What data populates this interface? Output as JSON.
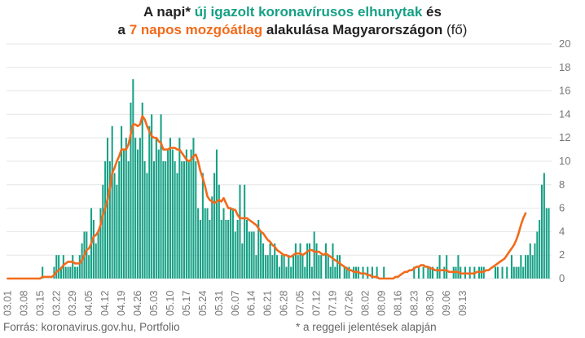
{
  "title": {
    "p1": "A napi* ",
    "p2": "új igazolt koronavírusos elhunytak",
    "p3": " és",
    "p4": "a ",
    "p5": "7 napos mozgóátlag",
    "p6": " alakulása Magyarországon",
    "p7": " (fő)"
  },
  "footer": {
    "source": "Forrás: koronavirus.gov.hu, Portfolio",
    "note": "* a reggeli jelentések alapján"
  },
  "colors": {
    "bars": "#16a085",
    "line": "#f26a1b",
    "grid": "#e6e6e6",
    "axis_text": "#777777"
  },
  "chart_data": {
    "type": "bar",
    "start_date": "03.01",
    "x_tick_labels": [
      "03.01",
      "03.08",
      "03.15",
      "03.22",
      "03.29",
      "04.05",
      "04.12",
      "04.19",
      "04.26",
      "05.03",
      "05.10",
      "05.17",
      "05.24",
      "05.31",
      "06.07",
      "06.14",
      "06.21",
      "06.28",
      "07.05",
      "07.12",
      "07.19",
      "07.26",
      "08.02",
      "08.09",
      "08.16",
      "08.23",
      "08.30",
      "09.06",
      "09.13"
    ],
    "ylim": [
      0,
      20
    ],
    "y_ticks": [
      0,
      2,
      4,
      6,
      8,
      10,
      12,
      14,
      16,
      18,
      20
    ],
    "y_axis_position": "right",
    "grid": true,
    "series": [
      {
        "kind": "bar",
        "values": [
          0,
          0,
          0,
          0,
          0,
          0,
          0,
          0,
          0,
          0,
          0,
          0,
          0,
          0,
          0,
          1,
          0,
          0,
          0,
          0,
          1,
          2,
          2,
          1,
          2,
          1,
          1,
          1,
          2,
          1,
          1,
          2,
          3,
          4,
          4,
          2,
          6,
          5,
          3,
          4,
          6,
          8,
          10,
          12,
          10,
          13,
          9,
          8,
          10,
          13,
          11,
          12,
          10,
          15,
          17,
          12,
          11,
          12,
          15,
          10,
          9,
          13,
          14,
          10,
          12,
          11,
          14,
          10,
          10,
          11,
          12,
          11,
          10,
          9,
          12,
          10,
          10,
          11,
          10,
          11,
          12,
          10,
          6,
          5,
          9,
          6,
          6,
          5,
          7,
          9,
          11,
          8,
          5,
          6,
          5,
          5,
          6,
          6,
          4,
          5,
          8,
          3,
          8,
          5,
          4,
          4,
          4,
          2,
          5,
          4,
          3,
          2,
          2,
          3,
          2,
          3,
          2,
          1,
          2,
          2,
          1,
          2,
          1,
          2,
          3,
          2,
          3,
          2,
          1,
          3,
          3,
          1,
          4,
          3,
          2,
          2,
          0,
          3,
          2,
          1,
          3,
          1,
          2,
          2,
          0,
          1,
          1,
          1,
          0,
          1,
          1,
          1,
          0,
          1,
          0,
          1,
          0,
          1,
          0,
          1,
          0,
          0,
          1,
          0,
          0,
          0,
          0,
          0,
          0,
          0,
          0,
          0,
          0,
          0,
          0,
          1,
          0,
          1,
          0,
          1,
          0,
          1,
          1,
          1,
          0,
          1,
          2,
          0,
          1,
          2,
          0,
          0,
          1,
          1,
          2,
          1,
          0,
          1,
          0,
          1,
          0,
          1,
          0,
          1,
          1,
          1,
          0,
          0,
          0,
          0,
          1,
          1,
          0,
          1,
          0,
          1,
          0,
          2,
          1,
          1,
          1,
          2,
          1,
          2,
          2,
          3,
          2,
          3,
          4,
          5,
          8,
          9,
          6,
          6
        ]
      },
      {
        "kind": "line",
        "values": [
          0,
          0,
          0,
          0,
          0,
          0,
          0,
          0,
          0,
          0,
          0,
          0,
          0,
          0,
          0,
          0.14,
          0.14,
          0.14,
          0.14,
          0.14,
          0.29,
          0.57,
          0.71,
          0.86,
          1.14,
          1.29,
          1.43,
          1.43,
          1.43,
          1.29,
          1.29,
          1.29,
          1.57,
          2.0,
          2.43,
          2.57,
          3.0,
          3.57,
          3.71,
          4.0,
          4.57,
          5.43,
          6.0,
          6.71,
          7.71,
          9.0,
          9.43,
          10.0,
          10.43,
          11.0,
          11.0,
          11.0,
          11.43,
          12.29,
          13.14,
          13.14,
          13.0,
          13.14,
          13.86,
          13.57,
          13.0,
          12.57,
          12.14,
          12.0,
          12.0,
          11.71,
          11.57,
          11.0,
          11.0,
          11.0,
          11.14,
          11.14,
          11.14,
          11.0,
          11.0,
          10.71,
          10.43,
          10.14,
          10.0,
          10.14,
          10.43,
          10.57,
          10.0,
          9.14,
          8.57,
          7.86,
          7.0,
          6.71,
          6.57,
          6.43,
          6.57,
          6.71,
          6.57,
          6.86,
          6.43,
          6.0,
          6.0,
          5.86,
          5.86,
          5.43,
          5.14,
          5.14,
          5.14,
          5.14,
          5.0,
          4.86,
          4.71,
          4.57,
          4.29,
          4.0,
          3.86,
          3.57,
          3.29,
          3.14,
          2.86,
          2.71,
          2.43,
          2.29,
          2.14,
          2.0,
          2.0,
          1.86,
          1.86,
          2.0,
          2.14,
          2.14,
          2.14,
          2.0,
          2.14,
          2.29,
          2.43,
          2.43,
          2.29,
          2.29,
          2.29,
          2.14,
          2.0,
          2.14,
          2.0,
          1.86,
          1.71,
          1.57,
          1.43,
          1.29,
          1.14,
          1.0,
          0.86,
          0.71,
          0.71,
          0.57,
          0.57,
          0.57,
          0.43,
          0.43,
          0.43,
          0.29,
          0.29,
          0.14,
          0.14,
          0.14,
          0.0,
          0.0,
          0.0,
          0.0,
          0.0,
          0.0,
          0.0,
          0.14,
          0.14,
          0.29,
          0.43,
          0.57,
          0.57,
          0.71,
          0.71,
          0.86,
          1.0,
          1.0,
          1.14,
          1.14,
          1.0,
          1.0,
          0.86,
          0.86,
          0.71,
          0.71,
          0.71,
          0.71,
          0.71,
          0.71,
          0.57,
          0.57,
          0.57,
          0.57,
          0.57,
          0.43,
          0.43,
          0.43,
          0.43,
          0.43,
          0.43,
          0.43,
          0.57,
          0.57,
          0.57,
          0.57,
          0.71,
          0.71,
          0.86,
          1.0,
          1.14,
          1.29,
          1.43,
          1.57,
          1.71,
          2.0,
          2.29,
          2.57,
          2.86,
          3.29,
          3.86,
          4.57,
          5.14,
          5.57
        ]
      }
    ]
  }
}
